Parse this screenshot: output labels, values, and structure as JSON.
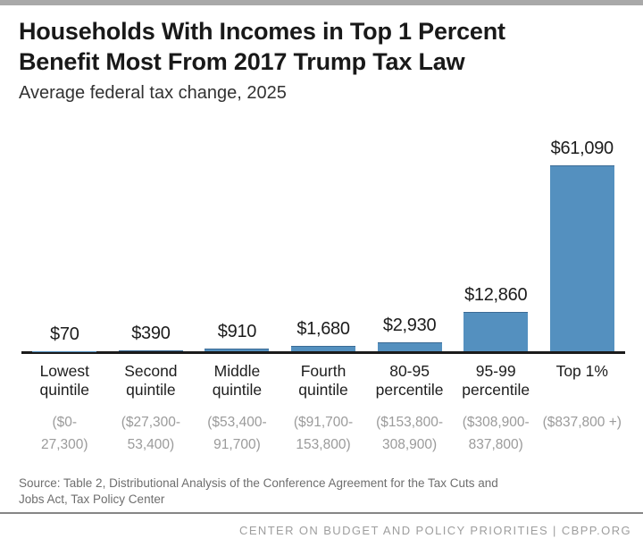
{
  "page": {
    "top_bar_color": "#a9a9a9",
    "background_color": "#ffffff"
  },
  "header": {
    "title_lines": [
      "Households With Incomes in Top 1 Percent",
      "Benefit Most From 2017 Trump Tax Law"
    ],
    "subtitle": "Average federal tax change, 2025"
  },
  "chart_data": {
    "type": "bar",
    "title": "Households With Incomes in Top 1 Percent Benefit Most From 2017 Trump Tax Law",
    "subtitle": "Average federal tax change, 2025",
    "unit": "US dollars, average federal tax change",
    "categories": [
      "Lowest quintile",
      "Second quintile",
      "Middle quintile",
      "Fourth quintile",
      "80-95 percentile",
      "95-99 percentile",
      "Top 1%"
    ],
    "category_lines": [
      [
        "Lowest",
        "quintile"
      ],
      [
        "Second",
        "quintile"
      ],
      [
        "Middle",
        "quintile"
      ],
      [
        "Fourth",
        "quintile"
      ],
      [
        "80-95",
        "percentile"
      ],
      [
        "95-99",
        "percentile"
      ],
      [
        "Top 1%"
      ]
    ],
    "income_ranges": [
      "($0-27,300)",
      "($27,300-53,400)",
      "($53,400-91,700)",
      "($91,700-153,800)",
      "($153,800-308,900)",
      "($308,900-837,800)",
      "($837,800 +)"
    ],
    "income_range_lines": [
      [
        "($0-",
        "27,300)"
      ],
      [
        "($27,300-",
        "53,400)"
      ],
      [
        "($53,400-",
        "91,700)"
      ],
      [
        "($91,700-",
        "153,800)"
      ],
      [
        "($153,800-",
        "308,900)"
      ],
      [
        "($308,900-",
        "837,800)"
      ],
      [
        "($837,800 +)"
      ]
    ],
    "values": [
      70,
      390,
      910,
      1680,
      2930,
      12860,
      61090
    ],
    "value_labels": [
      "$70",
      "$390",
      "$910",
      "$1,680",
      "$2,930",
      "$12,860",
      "$61,090"
    ],
    "ylim": [
      0,
      61090
    ],
    "bar_color": "#5490bf",
    "axis_line_color": "#1b1b1b",
    "grid": false,
    "legend": false
  },
  "source": {
    "lines": [
      "Source: Table 2, Distributional Analysis of the Conference Agreement for the Tax Cuts and",
      "Jobs Act, Tax Policy Center"
    ]
  },
  "footer": {
    "text": "CENTER ON BUDGET AND POLICY PRIORITIES | CBPP.ORG"
  }
}
